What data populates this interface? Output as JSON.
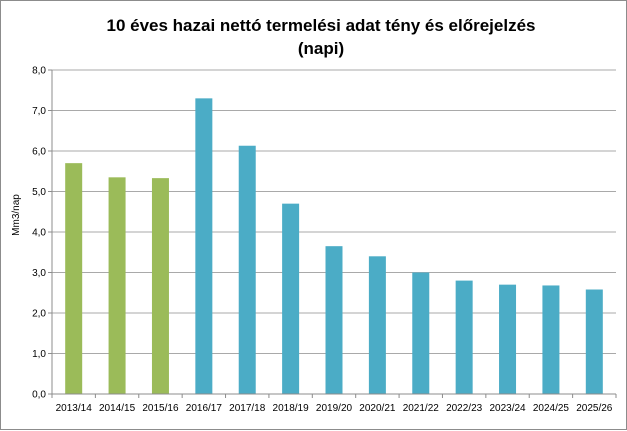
{
  "chart_data": {
    "type": "bar",
    "title": "10 éves hazai nettó termelési adat tény és előrejelzés",
    "subtitle": "(napi)",
    "xlabel": "",
    "ylabel": "Mm3/nap",
    "ylim": [
      0,
      8
    ],
    "yticks": [
      "0,0",
      "1,0",
      "2,0",
      "3,0",
      "4,0",
      "5,0",
      "6,0",
      "7,0",
      "8,0"
    ],
    "grid": true,
    "legend": "none",
    "categories": [
      "2013/14",
      "2014/15",
      "2015/16",
      "2016/17",
      "2017/18",
      "2018/19",
      "2019/20",
      "2020/21",
      "2021/22",
      "2022/23",
      "2023/24",
      "2024/25",
      "2025/26"
    ],
    "values": [
      5.7,
      5.35,
      5.33,
      7.3,
      6.13,
      4.7,
      3.65,
      3.4,
      3.0,
      2.8,
      2.7,
      2.68,
      2.58
    ],
    "kind": [
      "actual",
      "actual",
      "actual",
      "forecast",
      "forecast",
      "forecast",
      "forecast",
      "forecast",
      "forecast",
      "forecast",
      "forecast",
      "forecast",
      "forecast"
    ],
    "colors": {
      "actual": "#9bbb59",
      "forecast": "#4bacc6",
      "grid": "#8c8c8c",
      "axis": "#8c8c8c"
    }
  }
}
